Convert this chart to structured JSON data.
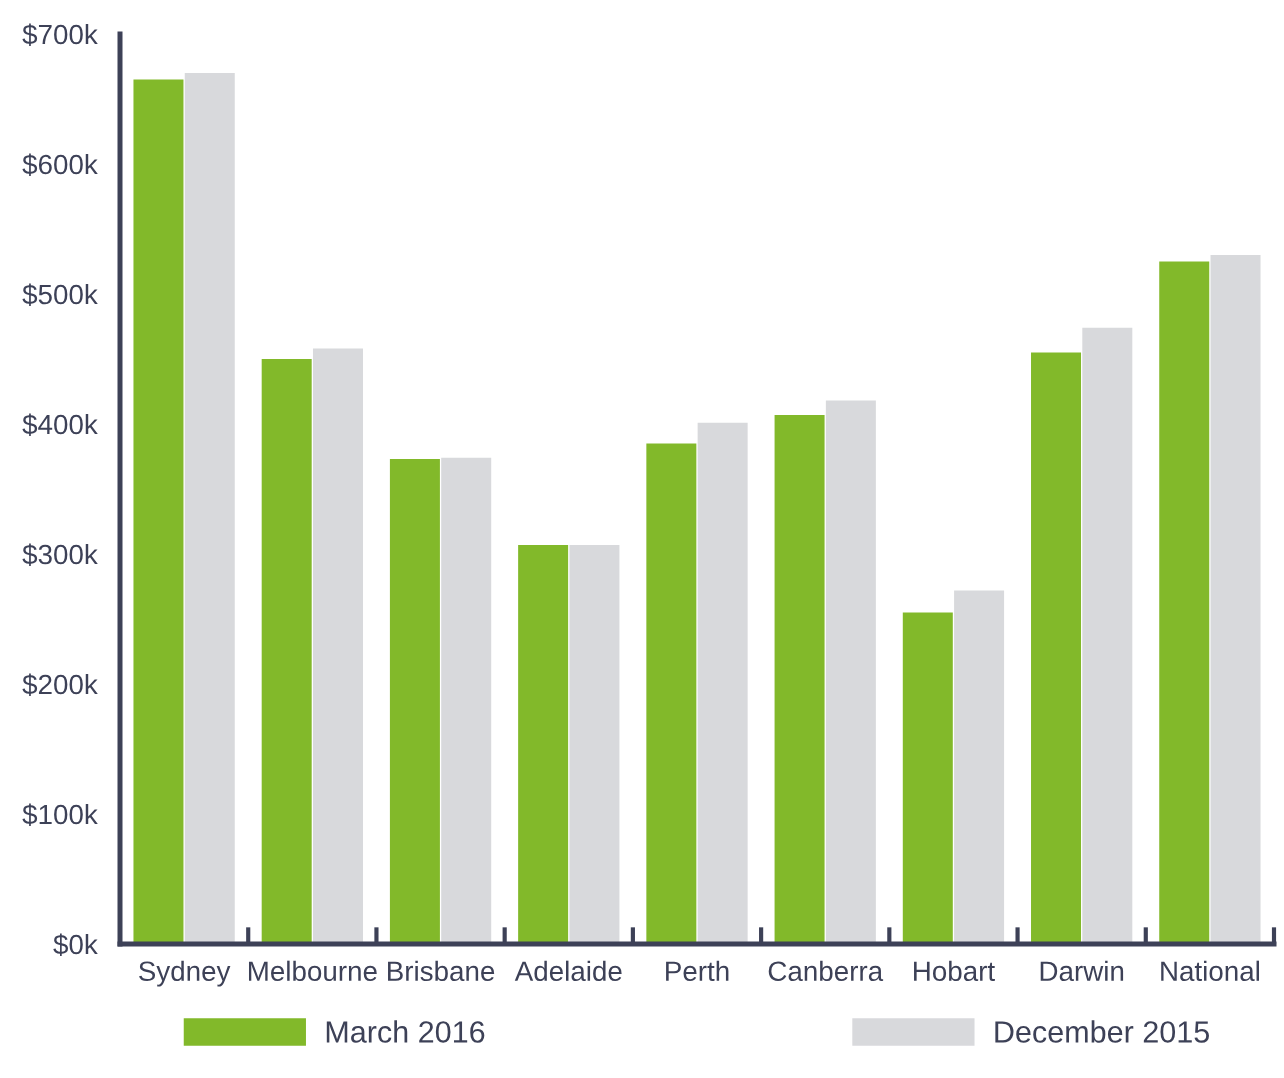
{
  "chart_data": {
    "type": "bar",
    "categories": [
      "Sydney",
      "Melbourne",
      "Brisbane",
      "Adelaide",
      "Perth",
      "Canberra",
      "Hobart",
      "Darwin",
      "National"
    ],
    "series": [
      {
        "name": "March 2016",
        "color": "#82b92a",
        "values": [
          665,
          450,
          373,
          307,
          385,
          407,
          255,
          455,
          525
        ]
      },
      {
        "name": "December 2015",
        "color": "#d8d9dc",
        "values": [
          670,
          458,
          374,
          307,
          401,
          418,
          272,
          474,
          530
        ]
      }
    ],
    "ylim": [
      0,
      700
    ],
    "yticks": [
      {
        "value": 0,
        "label": "$0k"
      },
      {
        "value": 100,
        "label": "$100k"
      },
      {
        "value": 200,
        "label": "$200k"
      },
      {
        "value": 300,
        "label": "$300k"
      },
      {
        "value": 400,
        "label": "$400k"
      },
      {
        "value": 500,
        "label": "$500k"
      },
      {
        "value": 600,
        "label": "$600k"
      },
      {
        "value": 700,
        "label": "$700k"
      }
    ],
    "grid": false,
    "legend": "bottom"
  }
}
